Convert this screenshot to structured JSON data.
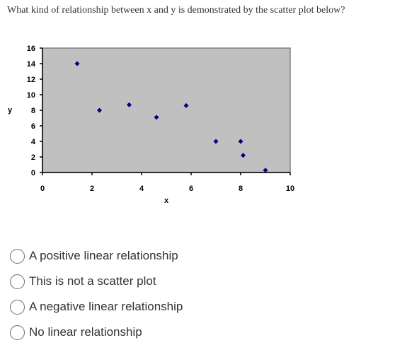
{
  "question": {
    "text": "What kind of relationship between x and y is demonstrated by the scatter plot below?"
  },
  "chart_data": {
    "type": "scatter",
    "title": "",
    "xlabel": "x",
    "ylabel": "y",
    "xlim": [
      0,
      10
    ],
    "ylim": [
      0,
      16
    ],
    "x_ticks": [
      "0",
      "2",
      "4",
      "6",
      "8",
      "10"
    ],
    "y_ticks": [
      "0",
      "2",
      "4",
      "6",
      "8",
      "10",
      "12",
      "14",
      "16"
    ],
    "grid": false,
    "legend": "none",
    "plot_area_color": "#c0c0c0",
    "marker_color": "#000080",
    "points": [
      {
        "x": 1.4,
        "y": 14
      },
      {
        "x": 2.3,
        "y": 8
      },
      {
        "x": 3.5,
        "y": 8.7
      },
      {
        "x": 4.6,
        "y": 7.1
      },
      {
        "x": 5.8,
        "y": 8.6
      },
      {
        "x": 7.0,
        "y": 4
      },
      {
        "x": 8.0,
        "y": 4
      },
      {
        "x": 8.1,
        "y": 2.2
      },
      {
        "x": 9.0,
        "y": 0.3
      }
    ]
  },
  "options": [
    {
      "label": "A positive linear relationship",
      "selected": false
    },
    {
      "label": "This is not a scatter plot",
      "selected": false
    },
    {
      "label": "A negative linear relationship",
      "selected": false
    },
    {
      "label": "No linear relationship",
      "selected": false
    }
  ]
}
